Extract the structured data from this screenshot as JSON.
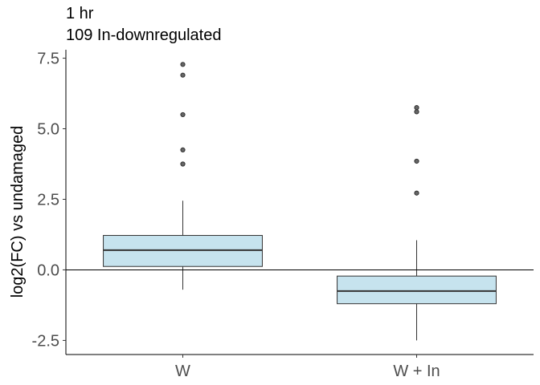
{
  "chart_data": {
    "type": "box",
    "title": "1 hr",
    "subtitle": "109 In-downregulated",
    "xlabel": "",
    "ylabel": "log2(FC) vs undamaged",
    "categories": [
      "W",
      "W + In"
    ],
    "ylim": [
      -3.0,
      7.8
    ],
    "yticks": [
      -2.5,
      0.0,
      2.5,
      5.0,
      7.5
    ],
    "ytick_labels": [
      "-2.5",
      "0.0",
      "2.5",
      "5.0",
      "7.5"
    ],
    "reference_line": 0,
    "grid": false,
    "legend": "none",
    "box_fill": "#c6e3ee",
    "box_stroke": "#333333",
    "boxes": [
      {
        "category": "W",
        "whisker_low": -0.7,
        "q1": 0.12,
        "median": 0.7,
        "q3": 1.22,
        "whisker_high": 2.45,
        "outliers": [
          3.75,
          4.25,
          5.5,
          6.9,
          7.28
        ]
      },
      {
        "category": "W + In",
        "whisker_low": -2.5,
        "q1": -1.2,
        "median": -0.75,
        "q3": -0.22,
        "whisker_high": 1.05,
        "outliers": [
          2.72,
          3.85,
          5.6,
          5.75
        ]
      }
    ]
  }
}
